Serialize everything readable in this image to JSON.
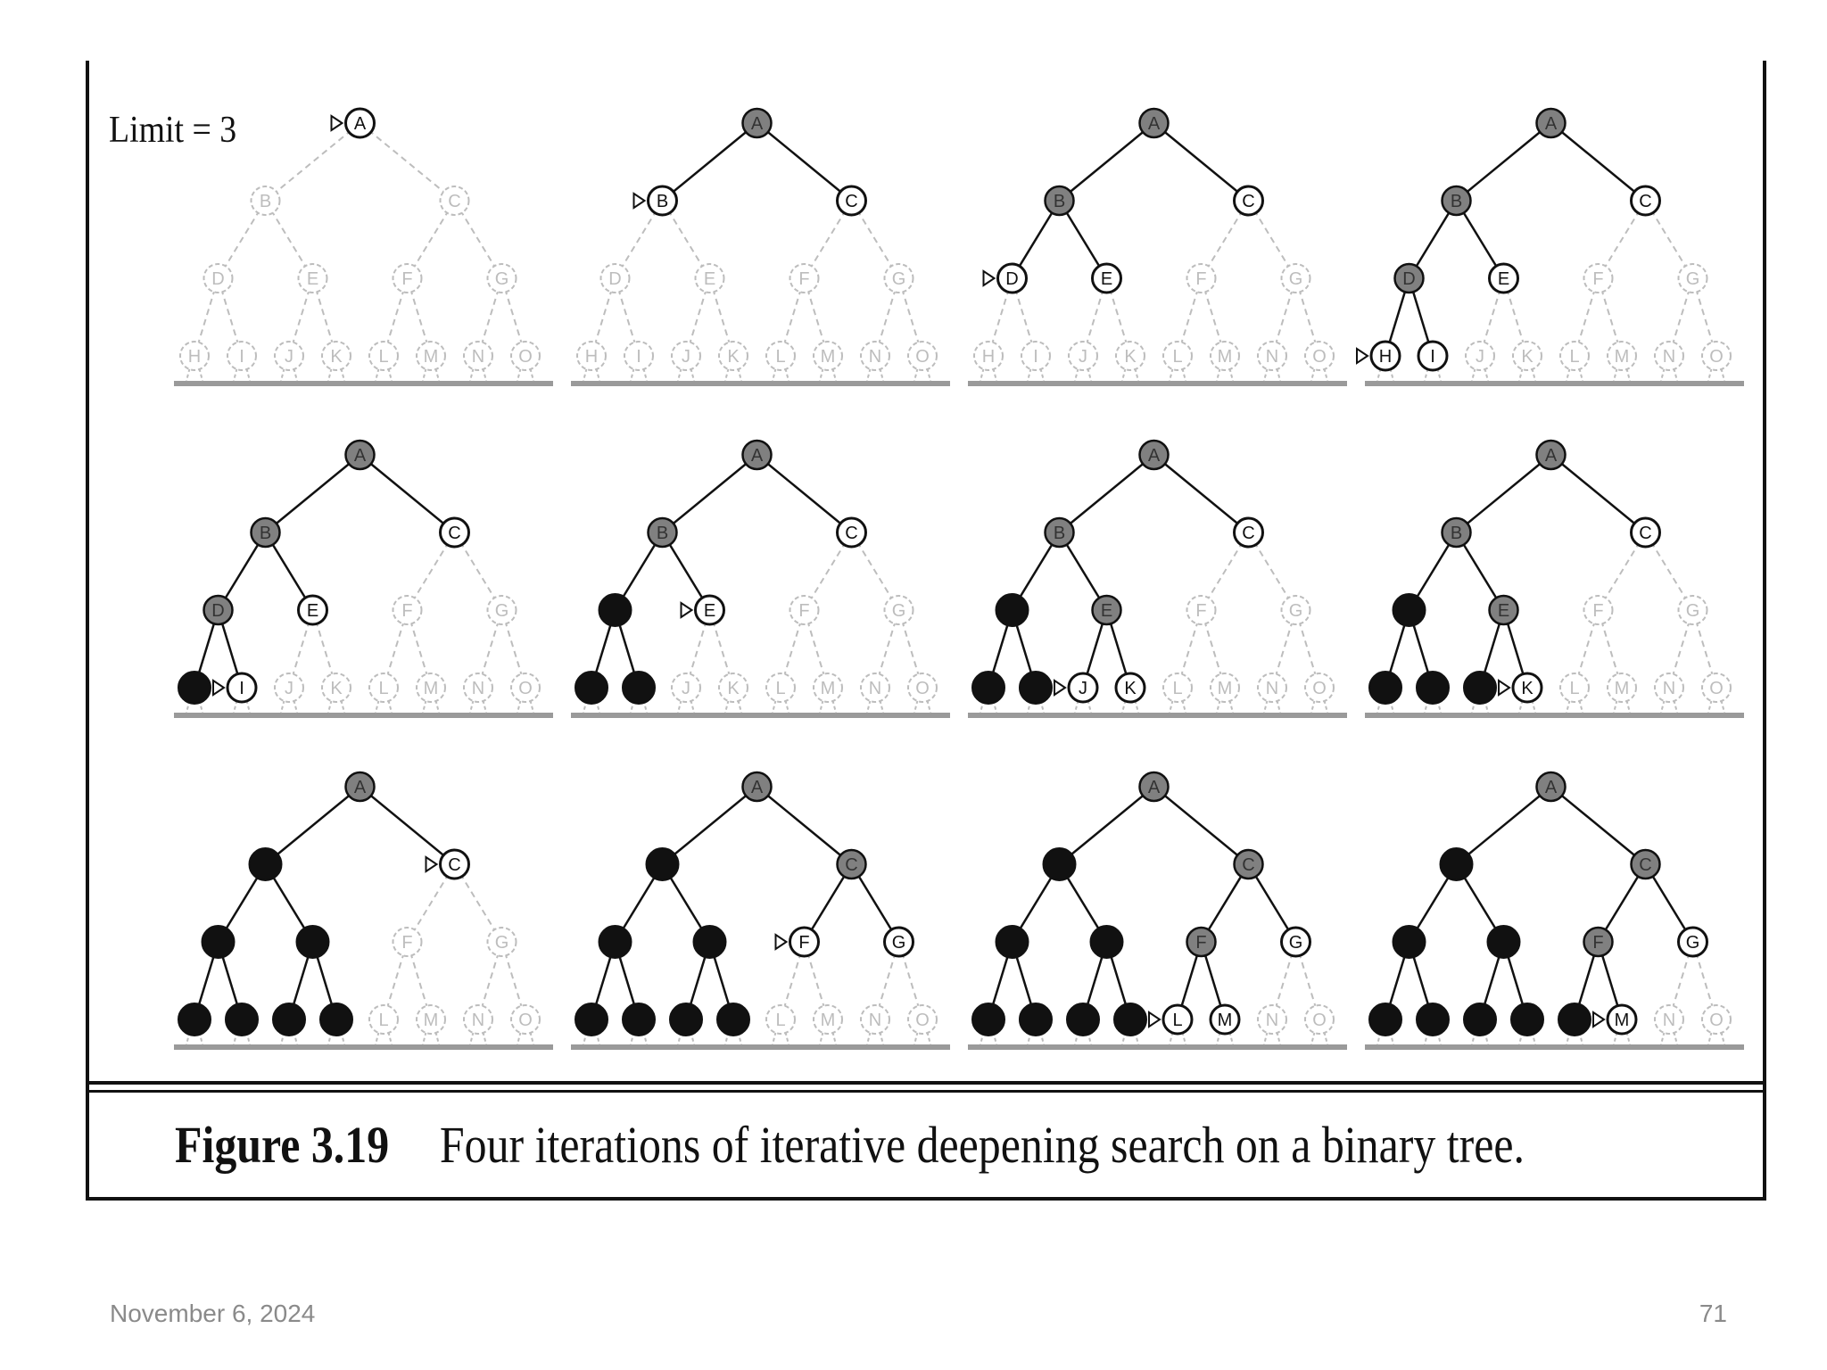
{
  "figure": {
    "limit_label": "Limit = 3",
    "caption_label": "Figure 3.19",
    "caption_text": "Four iterations of iterative deepening search on a binary tree."
  },
  "tree": {
    "nodes": [
      "A",
      "B",
      "C",
      "D",
      "E",
      "F",
      "G",
      "H",
      "I",
      "J",
      "K",
      "L",
      "M",
      "N",
      "O"
    ],
    "edges": [
      [
        "A",
        "B"
      ],
      [
        "A",
        "C"
      ],
      [
        "B",
        "D"
      ],
      [
        "B",
        "E"
      ],
      [
        "C",
        "F"
      ],
      [
        "C",
        "G"
      ],
      [
        "D",
        "H"
      ],
      [
        "D",
        "I"
      ],
      [
        "E",
        "J"
      ],
      [
        "E",
        "K"
      ],
      [
        "F",
        "L"
      ],
      [
        "F",
        "M"
      ],
      [
        "G",
        "N"
      ],
      [
        "G",
        "O"
      ]
    ]
  },
  "panels": [
    {
      "states": {
        "A": "frontier"
      },
      "arrow": "A"
    },
    {
      "states": {
        "A": "expanded",
        "B": "frontier",
        "C": "frontier"
      },
      "arrow": "B"
    },
    {
      "states": {
        "A": "expanded",
        "B": "expanded",
        "C": "frontier",
        "D": "frontier",
        "E": "frontier"
      },
      "arrow": "D"
    },
    {
      "states": {
        "A": "expanded",
        "B": "expanded",
        "C": "frontier",
        "D": "expanded",
        "E": "frontier",
        "H": "frontier",
        "I": "frontier"
      },
      "arrow": "H"
    },
    {
      "states": {
        "A": "expanded",
        "B": "expanded",
        "C": "frontier",
        "D": "expanded",
        "E": "frontier",
        "H": "removed",
        "I": "frontier"
      },
      "arrow": "I"
    },
    {
      "states": {
        "A": "expanded",
        "B": "expanded",
        "C": "frontier",
        "D": "removed",
        "E": "frontier",
        "H": "removed",
        "I": "removed"
      },
      "arrow": "E"
    },
    {
      "states": {
        "A": "expanded",
        "B": "expanded",
        "C": "frontier",
        "D": "removed",
        "E": "expanded",
        "H": "removed",
        "I": "removed",
        "J": "frontier",
        "K": "frontier"
      },
      "arrow": "J"
    },
    {
      "states": {
        "A": "expanded",
        "B": "expanded",
        "C": "frontier",
        "D": "removed",
        "E": "expanded",
        "H": "removed",
        "I": "removed",
        "J": "removed",
        "K": "frontier"
      },
      "arrow": "K"
    },
    {
      "states": {
        "A": "expanded",
        "B": "removed",
        "C": "frontier",
        "D": "removed",
        "E": "removed",
        "H": "removed",
        "I": "removed",
        "J": "removed",
        "K": "removed"
      },
      "arrow": "C"
    },
    {
      "states": {
        "A": "expanded",
        "B": "removed",
        "C": "expanded",
        "D": "removed",
        "E": "removed",
        "F": "frontier",
        "G": "frontier",
        "H": "removed",
        "I": "removed",
        "J": "removed",
        "K": "removed"
      },
      "arrow": "F"
    },
    {
      "states": {
        "A": "expanded",
        "B": "removed",
        "C": "expanded",
        "D": "removed",
        "E": "removed",
        "F": "expanded",
        "G": "frontier",
        "H": "removed",
        "I": "removed",
        "J": "removed",
        "K": "removed",
        "L": "frontier",
        "M": "frontier"
      },
      "arrow": "L"
    },
    {
      "states": {
        "A": "expanded",
        "B": "removed",
        "C": "expanded",
        "D": "removed",
        "E": "removed",
        "F": "expanded",
        "G": "frontier",
        "H": "removed",
        "I": "removed",
        "J": "removed",
        "K": "removed",
        "L": "removed",
        "M": "frontier"
      },
      "arrow": "M"
    }
  ],
  "colors": {
    "expanded": "#808080",
    "frontier": "#ffffff",
    "removed": "#111111",
    "unvisited": "#bdbdbd",
    "stroke": "#111111",
    "baseline": "#9a9a9a"
  },
  "footer": {
    "date": "November 6, 2024",
    "page": "71"
  }
}
